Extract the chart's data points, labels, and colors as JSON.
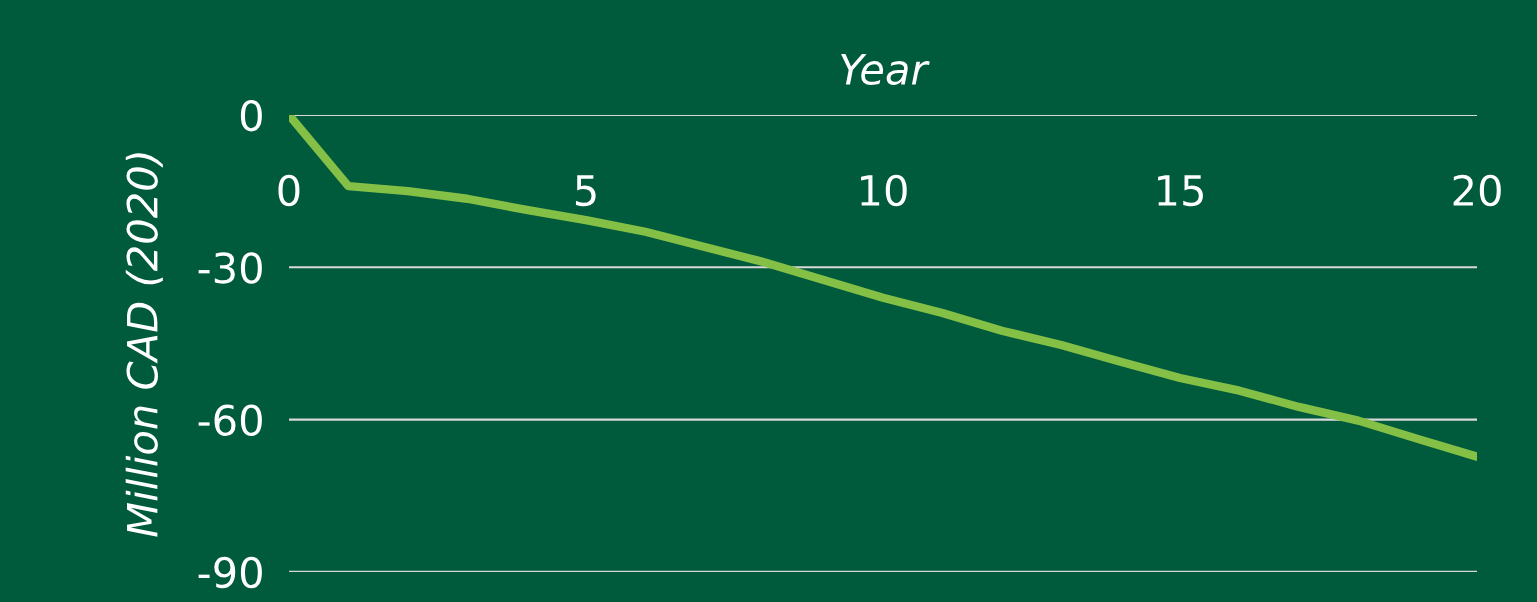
{
  "chart_data": {
    "type": "line",
    "xlabel": "Year",
    "ylabel": "Million CAD (2020)",
    "x": [
      0,
      1,
      2,
      3,
      4,
      5,
      6,
      7,
      8,
      9,
      10,
      11,
      12,
      13,
      14,
      15,
      16,
      17,
      18,
      19,
      20
    ],
    "series": [
      {
        "color": "#84c046",
        "values": [
          0,
          -14,
          -15,
          -16.5,
          -18.7,
          -20.7,
          -23,
          -26,
          -29,
          -32.5,
          -36,
          -39,
          -42.5,
          -45.3,
          -48.6,
          -51.8,
          -54.3,
          -57.5,
          -60.2,
          -63.8,
          -67.3
        ]
      }
    ],
    "xlim": [
      0,
      20
    ],
    "xticks": [
      0,
      5,
      10,
      15,
      20
    ],
    "ylim": [
      -90,
      0
    ],
    "yticks": [
      {
        "value": -90,
        "label": "-90"
      },
      {
        "value": -60,
        "label": "-60"
      },
      {
        "value": -30,
        "label": "-30"
      },
      0
    ],
    "grid": "y",
    "marker": "none",
    "line_style": "solid"
  }
}
